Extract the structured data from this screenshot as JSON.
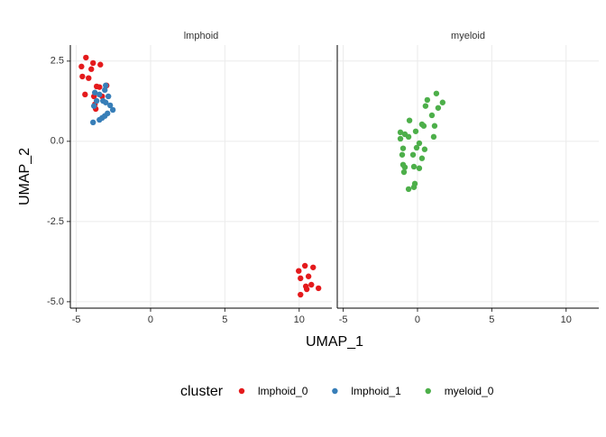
{
  "chart_data": {
    "type": "scatter",
    "xlabel": "UMAP_1",
    "ylabel": "UMAP_2",
    "legend_title": "cluster",
    "legend": "bottom",
    "grid": true,
    "xlim": [
      -5.4,
      12.2
    ],
    "xticks": [
      -5,
      0,
      5,
      10
    ],
    "ylim": [
      -5.2,
      3.0
    ],
    "yticks": [
      2.5,
      {
        "value": 0,
        "label": "0.0"
      },
      -2.5,
      {
        "value": -5,
        "label": "-5.0"
      }
    ],
    "panels": [
      {
        "title": "lmphoid",
        "series": [
          {
            "name": "lmphoid_0",
            "color": "#e41a1c",
            "x": [
              -4.35,
              -4.65,
              -3.87,
              -3.38,
              -3.99,
              -4.59,
              -4.17,
              -3.63,
              -3.44,
              -2.96,
              -4.41,
              -3.81,
              -3.26,
              -3.75,
              -3.69,
              10.39,
              9.97,
              10.94,
              10.09,
              10.63,
              10.45,
              10.82,
              11.3,
              10.51,
              10.09
            ],
            "values": [
              2.61,
              2.33,
              2.44,
              2.39,
              2.25,
              2.02,
              1.97,
              1.71,
              1.69,
              1.74,
              1.46,
              1.4,
              1.4,
              1.15,
              1.01,
              -3.88,
              -4.04,
              -3.93,
              -4.27,
              -4.21,
              -4.52,
              -4.47,
              -4.58,
              -4.61,
              -4.78
            ]
          },
          {
            "name": "lmphoid_1",
            "color": "#377eb8",
            "x": [
              -3.02,
              -3.08,
              -3.75,
              -3.44,
              -2.84,
              -3.63,
              -3.2,
              -3.02,
              -2.72,
              -3.81,
              -2.54,
              -2.9,
              -3.08,
              -3.26,
              -3.44,
              -3.87
            ],
            "values": [
              1.74,
              1.6,
              1.52,
              1.46,
              1.4,
              1.26,
              1.26,
              1.21,
              1.12,
              1.1,
              0.98,
              0.87,
              0.79,
              0.73,
              0.67,
              0.59
            ]
          }
        ]
      },
      {
        "title": "myeloid",
        "series": [
          {
            "name": "myeloid_0",
            "color": "#4daf4a",
            "x": [
              1.27,
              0.66,
              1.69,
              0.54,
              1.39,
              0.97,
              0.3,
              -0.54,
              1.15,
              0.42,
              -1.15,
              -0.85,
              -0.12,
              -0.6,
              1.09,
              -1.15,
              0.12,
              -0.97,
              -0.06,
              0.48,
              -1.03,
              -0.3,
              0.3,
              -0.97,
              -0.24,
              -0.85,
              0.12,
              -0.91,
              -0.18,
              -0.24,
              -0.6
            ],
            "values": [
              1.49,
              1.29,
              1.21,
              1.1,
              1.04,
              0.81,
              0.53,
              0.65,
              0.48,
              0.48,
              0.28,
              0.22,
              0.31,
              0.14,
              0.14,
              0.08,
              -0.06,
              -0.22,
              -0.2,
              -0.25,
              -0.42,
              -0.42,
              -0.53,
              -0.73,
              -0.79,
              -0.81,
              -0.84,
              -0.96,
              -1.32,
              -1.43,
              -1.49
            ]
          }
        ]
      }
    ]
  }
}
